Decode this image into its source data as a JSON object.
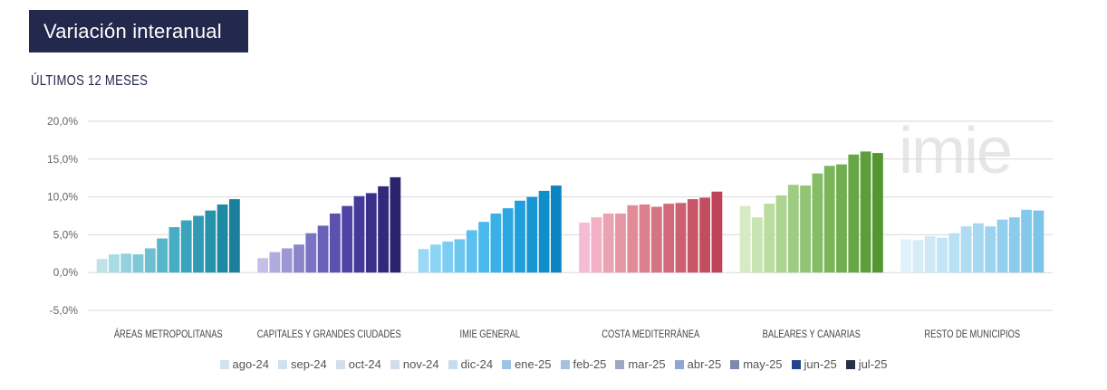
{
  "header": {
    "title": "Variación interanual",
    "subtitle": "ÚLTIMOS 12 MESES"
  },
  "watermark": "imie",
  "chart_data": {
    "type": "bar",
    "title": "Variación interanual",
    "subtitle": "ÚLTIMOS 12 MESES",
    "xlabel": "",
    "ylabel": "",
    "ylim": [
      -5,
      20
    ],
    "yticks": [
      "20,0%",
      "15,0%",
      "10,0%",
      "5,0%",
      "0,0%",
      "-5,0%"
    ],
    "ytick_values": [
      20,
      15,
      10,
      5,
      0,
      -5
    ],
    "grid": true,
    "legend_position": "bottom",
    "categories": [
      "ÁREAS METROPOLITANAS",
      "CAPITALES Y GRANDES CIUDADES",
      "IMIE GENERAL",
      "COSTA MEDITERRÁNEA",
      "BALEARES Y CANARIAS",
      "RESTO DE MUNICIPIOS"
    ],
    "series_names": [
      "ago-24",
      "sep-24",
      "oct-24",
      "nov-24",
      "dic-24",
      "ene-25",
      "feb-25",
      "mar-25",
      "abr-25",
      "may-25",
      "jun-25",
      "jul-25"
    ],
    "legend_colors": [
      "#cfe3f1",
      "#cfe1ef",
      "#d2e0ec",
      "#d3dceb",
      "#c8dcef",
      "#9cc3e6",
      "#a6c0e2",
      "#9ea8c4",
      "#8ea7d6",
      "#7d8aae",
      "#26428f",
      "#283049"
    ],
    "groups": [
      {
        "name": "ÁREAS METROPOLITANAS",
        "values": [
          1.8,
          2.4,
          2.5,
          2.4,
          3.2,
          4.5,
          6.0,
          6.9,
          7.5,
          8.2,
          9.0,
          9.7
        ],
        "colors": [
          "#bfe3ea",
          "#a9dbe5",
          "#93d1df",
          "#7fc8d8",
          "#6bbfd1",
          "#58b6cb",
          "#48adc4",
          "#3ba4bc",
          "#309bb4",
          "#2792ac",
          "#1f89a4",
          "#1a809c"
        ]
      },
      {
        "name": "CAPITALES Y GRANDES CIUDADES",
        "values": [
          1.9,
          2.7,
          3.2,
          3.7,
          5.2,
          6.2,
          7.8,
          8.8,
          10.1,
          10.5,
          11.4,
          12.6
        ],
        "colors": [
          "#c4bfe6",
          "#b1aadd",
          "#9f97d4",
          "#8c84cb",
          "#7a72c2",
          "#6a61b9",
          "#5b51af",
          "#4e43a4",
          "#443a99",
          "#3b318b",
          "#33297c",
          "#2b236b"
        ]
      },
      {
        "name": "IMIE GENERAL",
        "values": [
          3.1,
          3.7,
          4.1,
          4.4,
          5.6,
          6.7,
          7.8,
          8.5,
          9.5,
          10.0,
          10.8,
          11.5
        ],
        "colors": [
          "#9ad8f5",
          "#8cd3f4",
          "#7dcdf2",
          "#6cc7f0",
          "#5bc0ee",
          "#4ab9eb",
          "#39b1e7",
          "#2ba8e1",
          "#1f9fdb",
          "#1796d3",
          "#108dcb",
          "#0c84c2"
        ]
      },
      {
        "name": "COSTA MEDITERRÁNEA",
        "values": [
          6.6,
          7.3,
          7.8,
          7.8,
          8.9,
          9.0,
          8.7,
          9.1,
          9.2,
          9.7,
          9.9,
          10.7
        ],
        "colors": [
          "#f6bcd4",
          "#f1b0c3",
          "#eba3b3",
          "#e697a6",
          "#e18b99",
          "#dc7f8e",
          "#d77484",
          "#d2697a",
          "#cd5f71",
          "#c85668",
          "#c34d60",
          "#be4558"
        ]
      },
      {
        "name": "BALEARES Y CANARIAS",
        "values": [
          8.8,
          7.3,
          9.1,
          10.2,
          11.6,
          11.5,
          13.1,
          14.1,
          14.3,
          15.6,
          16.0,
          15.8
        ],
        "colors": [
          "#d6ebc3",
          "#c8e4b2",
          "#badca1",
          "#acd491",
          "#9ecd82",
          "#91c573",
          "#85bd66",
          "#7ab55a",
          "#70ae4f",
          "#66a645",
          "#5d9e3c",
          "#559633"
        ]
      },
      {
        "name": "RESTO DE MUNICIPIOS",
        "values": [
          4.4,
          4.3,
          4.8,
          4.6,
          5.2,
          6.1,
          6.5,
          6.1,
          7.0,
          7.3,
          8.3,
          8.2
        ],
        "colors": [
          "#e0f1fb",
          "#d6edf9",
          "#cde9f8",
          "#c3e5f7",
          "#b9e1f5",
          "#afdcf3",
          "#a6d8f1",
          "#9cd3ef",
          "#94cfee",
          "#8bcbec",
          "#84c8eb",
          "#7dc4e9"
        ]
      }
    ]
  }
}
